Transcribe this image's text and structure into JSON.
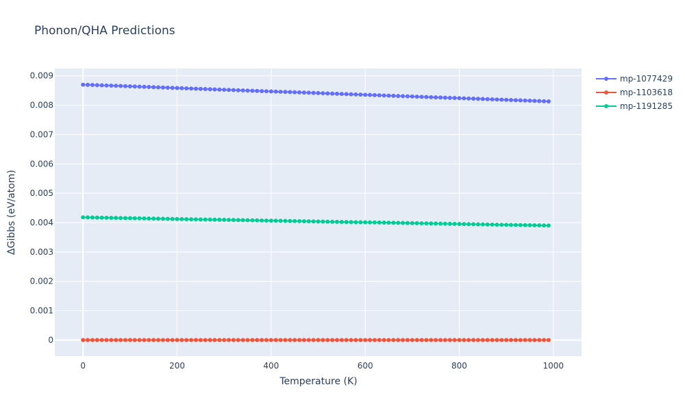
{
  "chart_data": {
    "type": "line",
    "title": "Phonon/QHA Predictions",
    "xlabel": "Temperature (K)",
    "ylabel": "ΔGibbs (eV/atom)",
    "xlim": [
      -60,
      1060
    ],
    "ylim": [
      -0.00055,
      0.00925
    ],
    "x_ticks": [
      0,
      200,
      400,
      600,
      800,
      1000
    ],
    "x_tick_labels": [
      "0",
      "200",
      "400",
      "600",
      "800",
      "1000"
    ],
    "y_ticks": [
      0,
      0.001,
      0.002,
      0.003,
      0.004,
      0.005,
      0.006,
      0.007,
      0.008,
      0.009
    ],
    "y_tick_labels": [
      "0",
      "0.001",
      "0.002",
      "0.003",
      "0.004",
      "0.005",
      "0.006",
      "0.007",
      "0.008",
      "0.009"
    ],
    "grid": true,
    "legend_position": "top-right",
    "x": {
      "start": 0,
      "end": 990,
      "step": 10
    },
    "series": [
      {
        "name": "mp-1077429",
        "color": "#636efa",
        "start_value": 0.0087,
        "end_value": 0.00813
      },
      {
        "name": "mp-1103618",
        "color": "#ef553b",
        "start_value": 0.0,
        "end_value": 0.0
      },
      {
        "name": "mp-1191285",
        "color": "#00cc96",
        "start_value": 0.00418,
        "end_value": 0.0039
      }
    ]
  }
}
